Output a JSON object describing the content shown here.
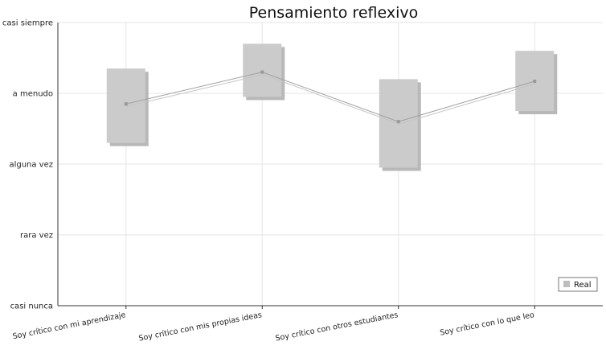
{
  "chart_data": {
    "type": "line",
    "title": "Pensamiento reflexivo",
    "xlabel": "",
    "ylabel": "",
    "categories": [
      "Soy crítico con mi aprendizaje",
      "Soy crítico con mis propias ideas",
      "Soy crítico con otros estudiantes",
      "Soy crítico con lo que leo"
    ],
    "y_tick_labels": [
      "casi nunca",
      "rara vez",
      "alguna vez",
      "a menudo",
      "casi siempre"
    ],
    "ylim": [
      1,
      5
    ],
    "grid": true,
    "legend_position": "bottom-right",
    "series": [
      {
        "name": "Real",
        "values": [
          3.85,
          4.3,
          3.6,
          4.17
        ],
        "range_low": [
          3.3,
          3.95,
          2.95,
          3.75
        ],
        "range_high": [
          4.35,
          4.7,
          4.2,
          4.6
        ]
      }
    ],
    "colors": {
      "box": "#cbcbcb",
      "box_shadow": "#b8b8b8",
      "line": "#a0a0a0",
      "marker": "#999999",
      "grid": "#e6e6e6",
      "axis": "#333333"
    }
  }
}
